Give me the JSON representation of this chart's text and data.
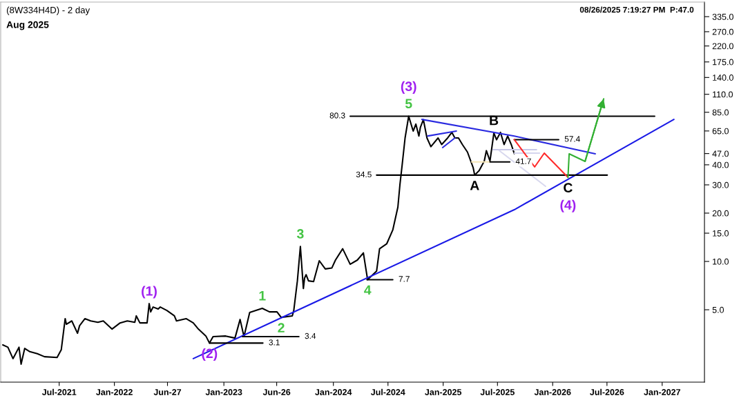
{
  "chart_data": {
    "type": "line",
    "title": "(8W334H4D) - 2 day",
    "subtitle": "Aug 2025",
    "log": true,
    "xlim": [
      "2020-12-18",
      "2027-05-22"
    ],
    "ylim": [
      1.77,
      413
    ],
    "xticks": [
      {
        "value": "2021-07-01",
        "label": "Jul-2021"
      },
      {
        "value": "2022-01-01",
        "label": "Jan-2022"
      },
      {
        "value": "2022-06-27",
        "label": "Jun-27"
      },
      {
        "value": "2023-01-01",
        "label": "Jan-2023"
      },
      {
        "value": "2023-06-26",
        "label": "Jun-26"
      },
      {
        "value": "2024-01-01",
        "label": "Jan-2024"
      },
      {
        "value": "2024-07-01",
        "label": "Jul-2024"
      },
      {
        "value": "2025-01-01",
        "label": "Jan-2025"
      },
      {
        "value": "2025-07-01",
        "label": "Jul-2025"
      },
      {
        "value": "2026-01-01",
        "label": "Jan-2026"
      },
      {
        "value": "2026-07-01",
        "label": "Jul-2026"
      },
      {
        "value": "2027-01-01",
        "label": "Jan-2027"
      }
    ],
    "yticks": [
      {
        "value": 5,
        "label": "5.0"
      },
      {
        "value": 10,
        "label": "10.0"
      },
      {
        "value": 15,
        "label": "15.0"
      },
      {
        "value": 20,
        "label": "20.0"
      },
      {
        "value": 30,
        "label": "30.0"
      },
      {
        "value": 40,
        "label": "40.0"
      },
      {
        "value": 47,
        "label": "47.0"
      },
      {
        "value": 65,
        "label": "65.0"
      },
      {
        "value": 85,
        "label": "85.0"
      },
      {
        "value": 110,
        "label": "110.0"
      },
      {
        "value": 140,
        "label": "140.0"
      },
      {
        "value": 175,
        "label": "175.0"
      },
      {
        "value": 220,
        "label": "220.0"
      },
      {
        "value": 270,
        "label": "270.0"
      },
      {
        "value": 335,
        "label": "335.0"
      }
    ],
    "series": [
      {
        "color": "#000000",
        "x": [
          "2020-12-25",
          "2021-01-11",
          "2021-01-28",
          "2021-02-17",
          "2021-02-24",
          "2021-03-08",
          "2021-03-25",
          "2021-04-19",
          "2021-05-13",
          "2021-06-24",
          "2021-07-08",
          "2021-07-21",
          "2021-07-25",
          "2021-08-12",
          "2021-08-31",
          "2021-09-07",
          "2021-09-25",
          "2021-10-14",
          "2021-11-07",
          "2021-11-25",
          "2021-12-24",
          "2022-01-20",
          "2022-02-13",
          "2022-03-10",
          "2022-03-15",
          "2022-03-27",
          "2022-04-20",
          "2022-04-27",
          "2022-05-02",
          "2022-05-10",
          "2022-05-27",
          "2022-06-03",
          "2022-06-25",
          "2022-07-20",
          "2022-07-27",
          "2022-08-28",
          "2022-09-21",
          "2022-10-08",
          "2022-11-02",
          "2022-11-14",
          "2022-11-26",
          "2023-01-07",
          "2023-02-07",
          "2023-02-24",
          "2023-03-09",
          "2023-03-28",
          "2023-05-09",
          "2023-06-02",
          "2023-06-27",
          "2023-07-11",
          "2023-08-17",
          "2023-08-22",
          "2023-09-03",
          "2023-09-13",
          "2023-09-23",
          "2023-09-27",
          "2023-10-02",
          "2023-10-10",
          "2023-10-27",
          "2023-11-15",
          "2023-12-05",
          "2023-12-27",
          "2024-01-08",
          "2024-02-01",
          "2024-02-26",
          "2024-03-21",
          "2024-04-10",
          "2024-04-24",
          "2024-05-24",
          "2024-06-03",
          "2024-06-27",
          "2024-07-17",
          "2024-08-03",
          "2024-08-10",
          "2024-08-17",
          "2024-08-27",
          "2024-09-08",
          "2024-09-23",
          "2024-10-02",
          "2024-10-12",
          "2024-10-17",
          "2024-10-27",
          "2024-11-08",
          "2024-11-21",
          "2024-12-15",
          "2024-12-27",
          "2025-01-16",
          "2025-01-30",
          "2025-02-09",
          "2025-02-21",
          "2025-03-06",
          "2025-03-23",
          "2025-04-11",
          "2025-04-16",
          "2025-05-01",
          "2025-05-18",
          "2025-05-25",
          "2025-06-06",
          "2025-06-19",
          "2025-06-28",
          "2025-07-11",
          "2025-07-23",
          "2025-08-04",
          "2025-08-16",
          "2025-08-26"
        ],
        "values": [
          3.02,
          2.92,
          2.48,
          2.92,
          2.29,
          2.87,
          2.74,
          2.66,
          2.55,
          2.52,
          2.82,
          4.4,
          4.06,
          4.26,
          3.57,
          3.98,
          4.4,
          4.26,
          4.18,
          4.26,
          3.79,
          4.14,
          4.26,
          4.18,
          4.58,
          4.14,
          4.14,
          5.46,
          4.85,
          5.2,
          5.05,
          5.2,
          4.95,
          4.58,
          4.26,
          4.4,
          4.14,
          3.79,
          3.43,
          3.1,
          3.4,
          3.43,
          3.33,
          4.35,
          3.4,
          4.81,
          5.1,
          4.85,
          4.85,
          4.48,
          4.58,
          4.95,
          7.57,
          12.4,
          6.78,
          7.88,
          8.27,
          7.57,
          7.49,
          10.1,
          8.98,
          9.11,
          10.2,
          12.0,
          9.6,
          10.2,
          11.3,
          7.7,
          8.7,
          12.0,
          12.9,
          15.7,
          21.8,
          30.3,
          39.5,
          58.8,
          80.3,
          64.9,
          71.7,
          60.4,
          68.5,
          76.5,
          58.8,
          51.9,
          58.8,
          53.5,
          58.8,
          63.7,
          58.8,
          58.8,
          53.5,
          48.0,
          38.4,
          34.5,
          36.8,
          42.2,
          49.0,
          42.2,
          63.1,
          57.3,
          63.7,
          53.5,
          60.4,
          53.5,
          47.0
        ]
      },
      {
        "color": "#1a1ae6",
        "x": [
          "2022-09-21",
          "2025-08-26",
          "2027-02-09"
        ],
        "values": [
          2.48,
          21.0,
          76.7
        ]
      },
      {
        "color": "#2a2ae0",
        "x": [
          "2024-10-22",
          "2025-08-26",
          "2026-05-23"
        ],
        "values": [
          76.7,
          60.4,
          46.8
        ]
      },
      {
        "color": "#2a2ae0",
        "x": [
          "2024-11-11",
          "2025-02-14"
        ],
        "values": [
          60.5,
          64.9
        ]
      },
      {
        "color": "#2a2ae0",
        "x": [
          "2024-12-30",
          "2025-02-09"
        ],
        "values": [
          51.2,
          58.8
        ]
      },
      {
        "color": "#f8e8b8",
        "x": [
          "2025-04-06",
          "2025-06-06"
        ],
        "values": [
          41.7,
          41.7
        ]
      },
      {
        "color": "#c8c8e8",
        "x": [
          "2025-06-16",
          "2025-11-08"
        ],
        "values": [
          49.7,
          49.7
        ]
      },
      {
        "color": "#d4d4ee",
        "x": [
          "2025-08-26",
          "2025-11-18"
        ],
        "values": [
          47.3,
          47.3
        ]
      },
      {
        "color": "#d8d8ee",
        "x": [
          "2025-07-06",
          "2025-12-08"
        ],
        "values": [
          49.2,
          29.4
        ]
      },
      {
        "color": "#000000",
        "x": [
          "2024-02-26",
          "2026-12-07"
        ],
        "values": [
          80.3,
          80.3
        ],
        "value_labels": [
          "80.3",
          null
        ]
      },
      {
        "color": "#000000",
        "x": [
          "2024-05-24",
          "2026-07-02"
        ],
        "values": [
          34.5,
          34.5
        ],
        "value_labels": [
          "34.5",
          null
        ]
      },
      {
        "color": "#000000",
        "x": [
          "2024-04-22",
          "2024-07-17"
        ],
        "values": [
          7.7,
          7.7
        ],
        "value_labels": [
          null,
          "7.7"
        ]
      },
      {
        "color": "#000000",
        "x": [
          "2022-11-14",
          "2023-05-11"
        ],
        "values": [
          3.1,
          3.1
        ],
        "value_labels": [
          null,
          "3.1"
        ]
      },
      {
        "color": "#000000",
        "x": [
          "2023-03-04",
          "2023-09-08"
        ],
        "values": [
          3.4,
          3.4
        ],
        "value_labels": [
          null,
          "3.4"
        ]
      },
      {
        "color": "#000000",
        "x": [
          "2025-06-06",
          "2025-08-11"
        ],
        "values": [
          41.7,
          41.7
        ],
        "value_labels": [
          null,
          "41.7"
        ]
      },
      {
        "color": "#000000",
        "x": [
          "2025-08-26",
          "2026-01-21"
        ],
        "values": [
          57.4,
          57.4
        ],
        "value_labels": [
          null,
          "57.4"
        ]
      },
      {
        "color": "#ff2a2a",
        "x": [
          "2025-08-26",
          "2025-11-02",
          "2025-12-04",
          "2026-02-21"
        ],
        "values": [
          57.4,
          38.8,
          47.3,
          33.4
        ]
      },
      {
        "color": "#33b033",
        "x": [
          "2026-02-21",
          "2026-02-25",
          "2026-04-19",
          "2026-06-20"
        ],
        "values": [
          33.4,
          46.8,
          42.0,
          103
        ]
      }
    ],
    "annotations": [
      {
        "text": "(1)",
        "x": "2022-04-27",
        "y": 5.46
      },
      {
        "text": "(2)",
        "x": "2022-11-14",
        "y": 3.1
      },
      {
        "text": "(3)",
        "x": "2024-09-08",
        "y": 80.3
      },
      {
        "text": "(4)",
        "x": "2026-02-21",
        "y": 33.4
      },
      {
        "text": "1",
        "x": "2023-05-09",
        "y": 5.1
      },
      {
        "text": "2",
        "x": "2023-07-11",
        "y": 4.48
      },
      {
        "text": "3",
        "x": "2023-09-13",
        "y": 12.4
      },
      {
        "text": "4",
        "x": "2024-04-24",
        "y": 7.7
      },
      {
        "text": "5",
        "x": "2024-09-08",
        "y": 80.3
      },
      {
        "text": "A",
        "x": "2025-04-16",
        "y": 34.5
      },
      {
        "text": "B",
        "x": "2025-06-19",
        "y": 63.1
      },
      {
        "text": "C",
        "x": "2026-02-21",
        "y": 33.4
      },
      "08/26/2025 7:19:27 PM  P:47.0"
    ]
  }
}
